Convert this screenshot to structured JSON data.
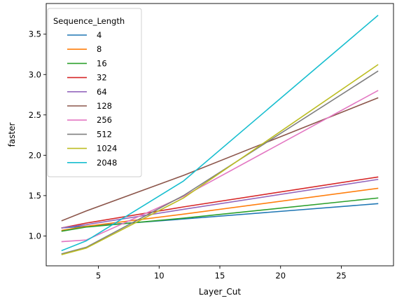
{
  "chart_data": {
    "type": "line",
    "xlabel": "Layer_Cut",
    "ylabel": "faster",
    "xlim": [
      0.7,
      29.3
    ],
    "ylim": [
      0.63,
      3.88
    ],
    "xticks": [
      5,
      10,
      15,
      20,
      25
    ],
    "yticks": [
      1.0,
      1.5,
      2.0,
      2.5,
      3.0,
      3.5
    ],
    "ytick_labels": [
      "1.0",
      "1.5",
      "2.0",
      "2.5",
      "3.0",
      "3.5"
    ],
    "grid": false,
    "legend": {
      "title": "Sequence_Length",
      "placement": "top-left"
    },
    "x": [
      2,
      4,
      12,
      28
    ],
    "series": [
      {
        "name": "4",
        "color": "#1f77b4",
        "values": [
          1.1,
          1.12,
          1.21,
          1.4
        ]
      },
      {
        "name": "8",
        "color": "#ff7f0e",
        "values": [
          1.07,
          1.12,
          1.27,
          1.59
        ]
      },
      {
        "name": "16",
        "color": "#2ca02c",
        "values": [
          1.06,
          1.11,
          1.22,
          1.47
        ]
      },
      {
        "name": "32",
        "color": "#d62728",
        "values": [
          1.1,
          1.16,
          1.36,
          1.73
        ]
      },
      {
        "name": "64",
        "color": "#9467bd",
        "values": [
          1.1,
          1.14,
          1.33,
          1.7
        ]
      },
      {
        "name": "128",
        "color": "#8c564b",
        "values": [
          1.19,
          1.31,
          1.75,
          2.71
        ]
      },
      {
        "name": "256",
        "color": "#e377c2",
        "values": [
          0.93,
          0.95,
          1.49,
          2.8
        ]
      },
      {
        "name": "512",
        "color": "#7f7f7f",
        "values": [
          0.78,
          0.86,
          1.5,
          3.04
        ]
      },
      {
        "name": "1024",
        "color": "#bcbd22",
        "values": [
          0.77,
          0.85,
          1.47,
          3.12
        ]
      },
      {
        "name": "2048",
        "color": "#17becf",
        "values": [
          0.82,
          0.94,
          1.68,
          3.73
        ]
      }
    ]
  }
}
